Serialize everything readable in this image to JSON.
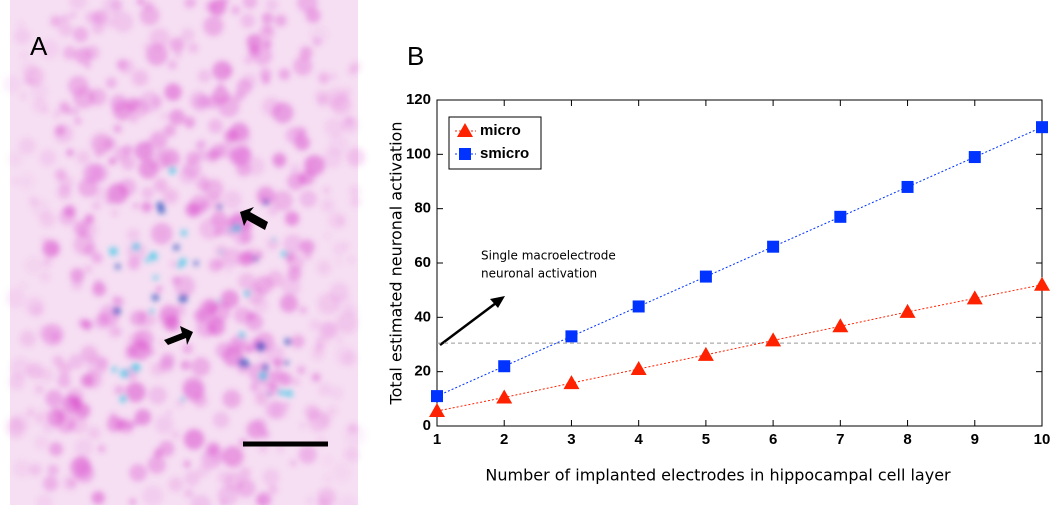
{
  "panel_a": {
    "label": "A"
  },
  "chart_data": {
    "type": "line",
    "panel_label": "B",
    "x_label": "Number of implanted electrodes in hippocampal cell layer",
    "y_label": "Total estimated neuronal activation",
    "x": [
      1,
      2,
      3,
      4,
      5,
      6,
      7,
      8,
      9,
      10
    ],
    "series": [
      {
        "name": "micro",
        "color": "#ff2200",
        "marker": "triangle",
        "values": [
          5.5,
          10.5,
          15.8,
          21,
          26.2,
          31.5,
          36.7,
          42,
          47,
          52
        ]
      },
      {
        "name": "smicro",
        "color": "#0033ff",
        "marker": "square",
        "values": [
          11,
          22,
          33,
          44,
          55,
          66,
          77,
          88,
          99,
          110
        ]
      }
    ],
    "reference_line": 30.5,
    "annotation": [
      "Single macroelectrode",
      "neuronal activation"
    ],
    "xlim": [
      1,
      10
    ],
    "xticks": [
      1,
      2,
      3,
      4,
      5,
      6,
      7,
      8,
      9,
      10
    ],
    "ylim": [
      0,
      120
    ],
    "yticks": [
      0,
      20,
      40,
      60,
      80,
      100,
      120
    ],
    "legend": "upper left",
    "grid": false
  }
}
